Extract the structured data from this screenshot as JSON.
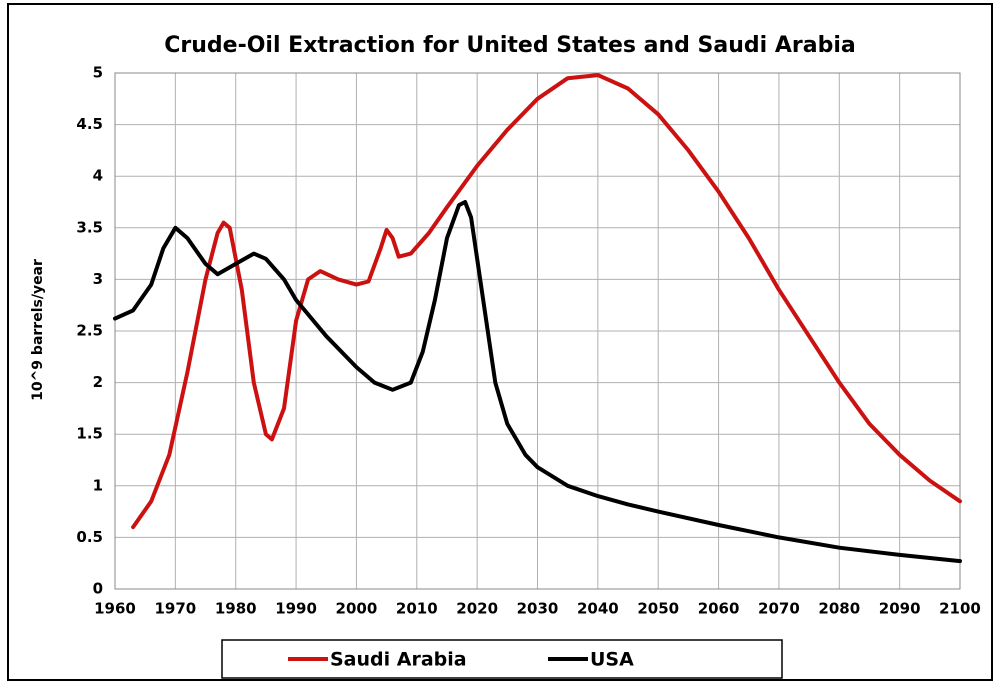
{
  "chart_data": {
    "type": "line",
    "title": "Crude-Oil Extraction for United States and Saudi Arabia",
    "y_label": "10^9 barrels/year",
    "xlim": [
      1960,
      2100
    ],
    "xticks": [
      1960,
      1970,
      1980,
      1990,
      2000,
      2010,
      2020,
      2030,
      2040,
      2050,
      2060,
      2070,
      2080,
      2090,
      2100
    ],
    "ylim": [
      0,
      5
    ],
    "yticks": [
      0,
      0.5,
      1,
      1.5,
      2,
      2.5,
      3,
      3.5,
      4,
      4.5,
      5
    ],
    "grid": true,
    "legend": "bottom",
    "series": [
      {
        "name": "Saudi Arabia",
        "color": "#cc1111",
        "x": [
          1963,
          1966,
          1969,
          1972,
          1975,
          1977,
          1978,
          1979,
          1981,
          1983,
          1985,
          1986,
          1988,
          1990,
          1992,
          1994,
          1997,
          2000,
          2002,
          2004,
          2005,
          2006,
          2007,
          2009,
          2012,
          2015,
          2020,
          2025,
          2030,
          2035,
          2040,
          2045,
          2050,
          2055,
          2060,
          2065,
          2070,
          2075,
          2080,
          2085,
          2090,
          2095,
          2100
        ],
        "values": [
          0.6,
          0.85,
          1.3,
          2.1,
          3.0,
          3.45,
          3.55,
          3.5,
          2.9,
          2.0,
          1.5,
          1.45,
          1.75,
          2.6,
          3.0,
          3.08,
          3.0,
          2.95,
          2.98,
          3.3,
          3.48,
          3.4,
          3.22,
          3.25,
          3.45,
          3.7,
          4.1,
          4.45,
          4.75,
          4.95,
          4.98,
          4.85,
          4.6,
          4.25,
          3.85,
          3.4,
          2.9,
          2.45,
          2.0,
          1.6,
          1.3,
          1.05,
          0.85
        ]
      },
      {
        "name": "USA",
        "color": "#000000",
        "x": [
          1960,
          1963,
          1966,
          1968,
          1970,
          1972,
          1975,
          1977,
          1980,
          1983,
          1985,
          1988,
          1990,
          1995,
          2000,
          2003,
          2006,
          2009,
          2011,
          2013,
          2015,
          2017,
          2018,
          2019,
          2021,
          2023,
          2025,
          2028,
          2030,
          2035,
          2040,
          2045,
          2050,
          2060,
          2070,
          2080,
          2090,
          2100
        ],
        "values": [
          2.62,
          2.7,
          2.95,
          3.3,
          3.5,
          3.4,
          3.15,
          3.05,
          3.15,
          3.25,
          3.2,
          3.0,
          2.8,
          2.45,
          2.15,
          2.0,
          1.93,
          2.0,
          2.3,
          2.8,
          3.4,
          3.72,
          3.75,
          3.6,
          2.8,
          2.0,
          1.6,
          1.3,
          1.18,
          1.0,
          0.9,
          0.82,
          0.75,
          0.62,
          0.5,
          0.4,
          0.33,
          0.27
        ]
      }
    ]
  }
}
